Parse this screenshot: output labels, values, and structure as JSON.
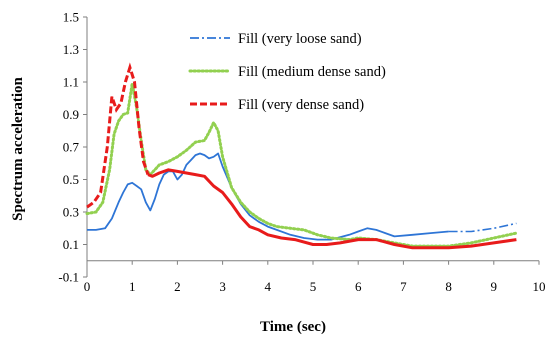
{
  "chart_data": {
    "type": "line",
    "xlabel": "Time (sec)",
    "ylabel": "Spectrum acceleration",
    "xlim": [
      0,
      10
    ],
    "ylim": [
      -0.1,
      1.5
    ],
    "xticks": [
      "0",
      "1",
      "2",
      "3",
      "4",
      "5",
      "6",
      "7",
      "8",
      "9",
      "10"
    ],
    "yticks": [
      "-0.1",
      "0.1",
      "0.3",
      "0.5",
      "0.7",
      "0.9",
      "1.1",
      "1.3",
      "1.5"
    ],
    "grid": false,
    "legend_position": "top-right",
    "series": [
      {
        "name": "Fill (very loose sand)",
        "color": "#2e75d6",
        "style": "dash-dot",
        "x": [
          0,
          0.2,
          0.4,
          0.55,
          0.7,
          0.8,
          0.9,
          1.0,
          1.1,
          1.2,
          1.3,
          1.4,
          1.5,
          1.6,
          1.7,
          1.8,
          1.9,
          2.0,
          2.1,
          2.2,
          2.3,
          2.4,
          2.5,
          2.6,
          2.7,
          2.8,
          2.9,
          3.0,
          3.2,
          3.4,
          3.6,
          3.8,
          4.0,
          4.2,
          4.5,
          4.8,
          5.1,
          5.4,
          5.8,
          6.0,
          6.2,
          6.4,
          6.6,
          6.8,
          7.2,
          7.6,
          8.0,
          8.5,
          9.0,
          9.5
        ],
        "y": [
          0.19,
          0.19,
          0.2,
          0.26,
          0.36,
          0.42,
          0.47,
          0.48,
          0.46,
          0.44,
          0.36,
          0.31,
          0.38,
          0.47,
          0.53,
          0.55,
          0.55,
          0.5,
          0.53,
          0.59,
          0.62,
          0.65,
          0.66,
          0.65,
          0.63,
          0.64,
          0.66,
          0.58,
          0.45,
          0.35,
          0.28,
          0.24,
          0.21,
          0.19,
          0.16,
          0.14,
          0.13,
          0.13,
          0.16,
          0.18,
          0.2,
          0.19,
          0.17,
          0.15,
          0.16,
          0.17,
          0.18,
          0.18,
          0.2,
          0.23
        ]
      },
      {
        "name": "Fill (medium dense sand)",
        "color": "#92d050",
        "style": "dotted",
        "x": [
          0,
          0.2,
          0.35,
          0.5,
          0.6,
          0.7,
          0.8,
          0.9,
          1.0,
          1.1,
          1.2,
          1.3,
          1.4,
          1.5,
          1.6,
          1.8,
          2.0,
          2.2,
          2.4,
          2.6,
          2.7,
          2.8,
          2.9,
          3.0,
          3.2,
          3.4,
          3.6,
          3.8,
          4.0,
          4.2,
          4.5,
          4.8,
          5.1,
          5.4,
          5.8,
          6.0,
          6.4,
          6.8,
          7.2,
          7.6,
          8.0,
          8.5,
          9.0,
          9.5
        ],
        "y": [
          0.29,
          0.3,
          0.36,
          0.56,
          0.78,
          0.86,
          0.9,
          0.91,
          1.09,
          0.94,
          0.74,
          0.56,
          0.53,
          0.56,
          0.59,
          0.61,
          0.64,
          0.68,
          0.73,
          0.74,
          0.79,
          0.85,
          0.8,
          0.64,
          0.45,
          0.36,
          0.3,
          0.26,
          0.23,
          0.21,
          0.2,
          0.19,
          0.16,
          0.14,
          0.13,
          0.14,
          0.13,
          0.11,
          0.09,
          0.09,
          0.09,
          0.11,
          0.14,
          0.17
        ]
      },
      {
        "name": "Fill (very dense sand)",
        "color": "#e81b1b",
        "style": "dashed",
        "x": [
          0,
          0.15,
          0.3,
          0.45,
          0.55,
          0.65,
          0.75,
          0.85,
          0.95,
          1.05,
          1.15,
          1.25,
          1.35,
          1.45,
          1.6,
          1.8,
          2.0,
          2.2,
          2.4,
          2.6,
          2.8,
          3.0,
          3.2,
          3.4,
          3.6,
          3.8,
          4.0,
          4.3,
          4.6,
          5.0,
          5.3,
          5.6,
          6.0,
          6.4,
          6.8,
          7.2,
          7.6,
          8.0,
          8.5,
          9.0,
          9.5
        ],
        "y": [
          0.33,
          0.36,
          0.42,
          0.7,
          1.01,
          0.93,
          0.97,
          1.1,
          1.19,
          1.1,
          0.82,
          0.61,
          0.53,
          0.52,
          0.54,
          0.56,
          0.55,
          0.54,
          0.53,
          0.52,
          0.46,
          0.42,
          0.35,
          0.27,
          0.21,
          0.19,
          0.16,
          0.14,
          0.13,
          0.1,
          0.1,
          0.11,
          0.13,
          0.13,
          0.1,
          0.08,
          0.08,
          0.08,
          0.09,
          0.11,
          0.13
        ]
      }
    ]
  }
}
